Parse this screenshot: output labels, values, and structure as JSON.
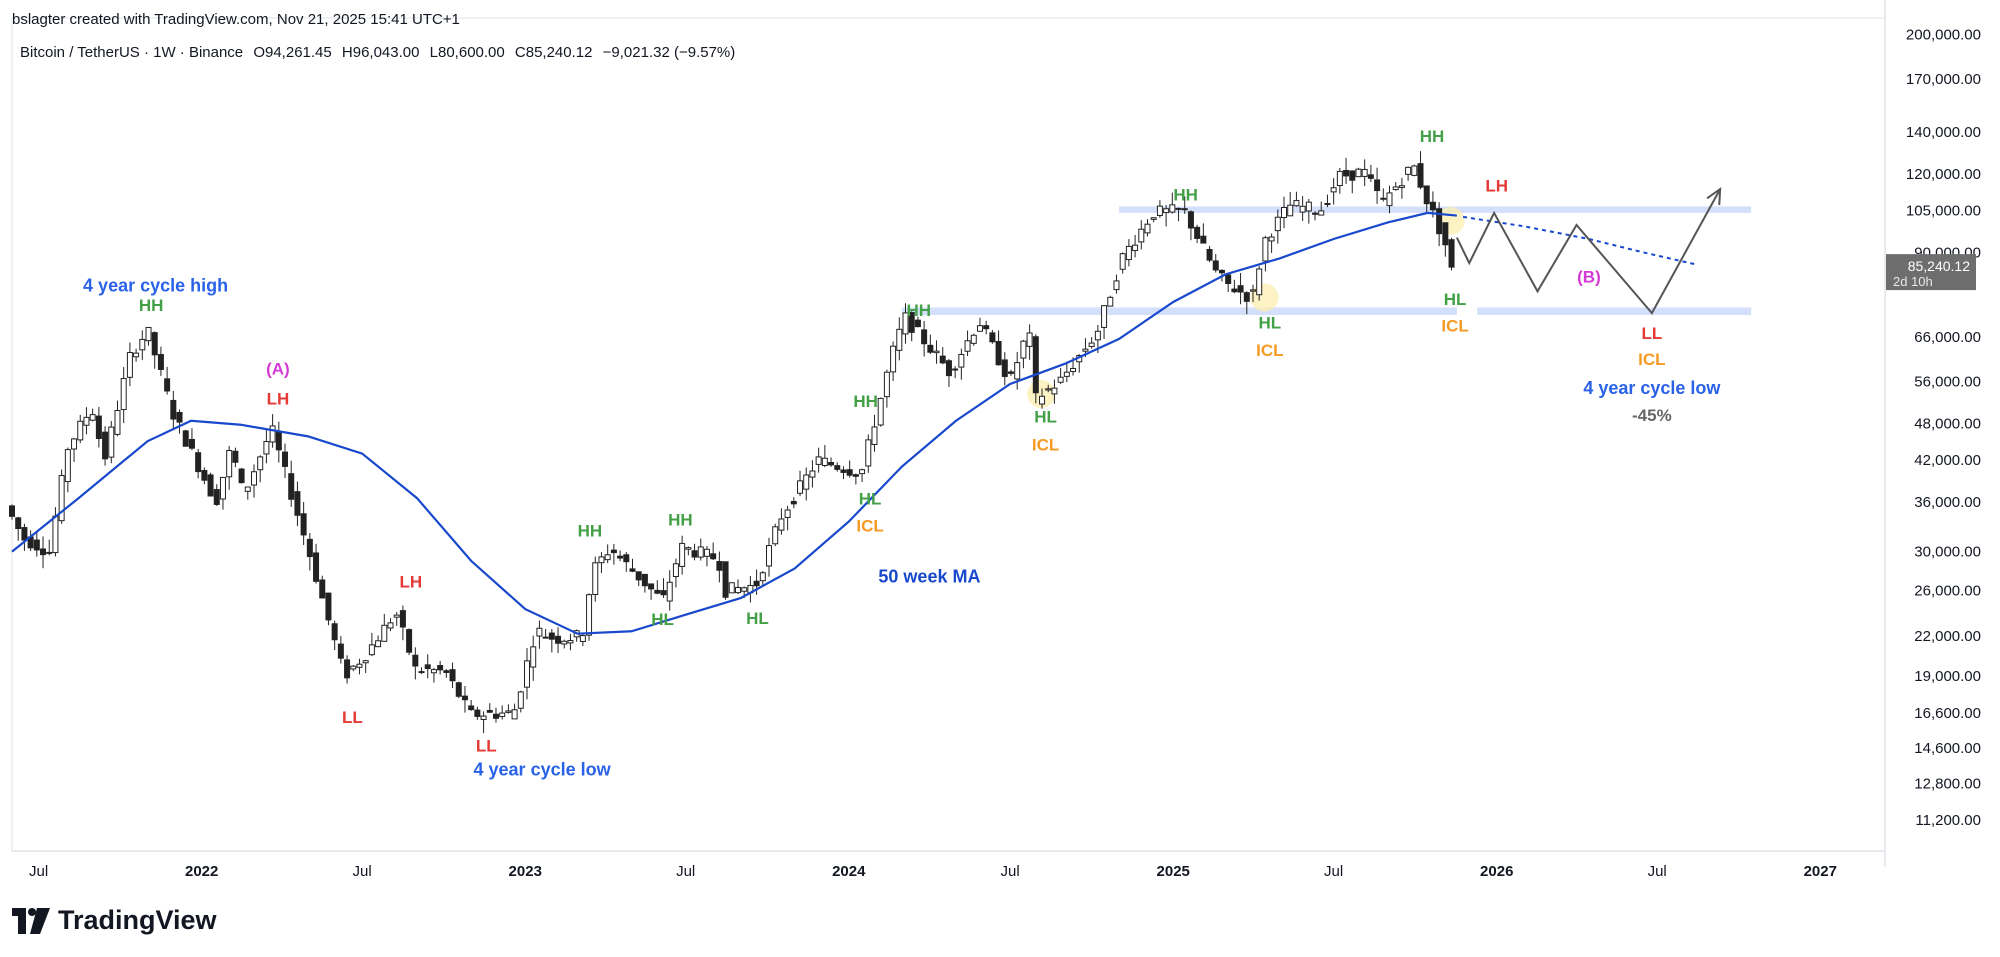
{
  "header": {
    "credit": "bslagter created with TradingView.com, Nov 21, 2025 15:41 UTC+1",
    "symbol": "Bitcoin / TetherUS · 1W · Binance",
    "open": "O94,261.45",
    "high": "H96,043.00",
    "low": "L80,600.00",
    "close": "C85,240.12",
    "change": "−9,021.32 (−9.57%)"
  },
  "footer": {
    "brand": "TradingView"
  },
  "colors": {
    "ma": "#1848cc",
    "green": "#43a047",
    "red": "#e53935",
    "orange": "#f59a23",
    "magenta": "#d33ad3",
    "blue_label": "#2962e8",
    "zone": "#cfdcfb",
    "candle": "#222222"
  },
  "chart_data": {
    "type": "candlestick",
    "title": "Bitcoin / TetherUS · 1W · Binance",
    "y_scale": "log",
    "ylim": [
      10000,
      205000
    ],
    "y_ticks": [
      200000,
      170000,
      140000,
      120000,
      105000,
      90000,
      66000,
      56000,
      48000,
      42000,
      36000,
      30000,
      26000,
      22000,
      19000,
      16600,
      14600,
      12800,
      11200
    ],
    "y_tick_labels": [
      "200,000.00",
      "170,000.00",
      "140,000.00",
      "120,000.00",
      "105,000.00",
      "90,000.00",
      "66,000.00",
      "56,000.00",
      "48,000.00",
      "42,000.00",
      "36,000.00",
      "30,000.00",
      "26,000.00",
      "22,000.00",
      "19,000.00",
      "16,600.00",
      "14,600.00",
      "12,800.00",
      "11,200.00"
    ],
    "x_range": [
      "2021-06-01",
      "2027-03-15"
    ],
    "x_ticks": [
      {
        "date": "2021-07-01",
        "label": "Jul",
        "bold": false
      },
      {
        "date": "2022-01-01",
        "label": "2022",
        "bold": true
      },
      {
        "date": "2022-07-01",
        "label": "Jul",
        "bold": false
      },
      {
        "date": "2023-01-01",
        "label": "2023",
        "bold": true
      },
      {
        "date": "2023-07-01",
        "label": "Jul",
        "bold": false
      },
      {
        "date": "2024-01-01",
        "label": "2024",
        "bold": true
      },
      {
        "date": "2024-07-01",
        "label": "Jul",
        "bold": false
      },
      {
        "date": "2025-01-01",
        "label": "2025",
        "bold": true
      },
      {
        "date": "2025-07-01",
        "label": "Jul",
        "bold": false
      },
      {
        "date": "2026-01-01",
        "label": "2026",
        "bold": true
      },
      {
        "date": "2026-07-01",
        "label": "Jul",
        "bold": false
      },
      {
        "date": "2027-01-01",
        "label": "2027",
        "bold": true
      }
    ],
    "price_keypoints": [
      [
        "2021-06-01",
        35500
      ],
      [
        "2021-06-21",
        31500
      ],
      [
        "2021-07-20",
        30000
      ],
      [
        "2021-08-10",
        44000
      ],
      [
        "2021-09-06",
        51000
      ],
      [
        "2021-09-20",
        42000
      ],
      [
        "2021-10-20",
        62000
      ],
      [
        "2021-11-08",
        67500
      ],
      [
        "2021-12-06",
        50000
      ],
      [
        "2022-01-24",
        36000
      ],
      [
        "2022-02-10",
        44000
      ],
      [
        "2022-02-24",
        37000
      ],
      [
        "2022-03-28",
        47000
      ],
      [
        "2022-05-09",
        30000
      ],
      [
        "2022-06-18",
        19000
      ],
      [
        "2022-07-11",
        20500
      ],
      [
        "2022-08-15",
        24000
      ],
      [
        "2022-09-06",
        19500
      ],
      [
        "2022-10-10",
        19300
      ],
      [
        "2022-11-07",
        16500
      ],
      [
        "2022-12-26",
        16600
      ],
      [
        "2023-01-20",
        22500
      ],
      [
        "2023-02-10",
        21800
      ],
      [
        "2023-03-13",
        22000
      ],
      [
        "2023-03-25",
        28000
      ],
      [
        "2023-04-14",
        30400
      ],
      [
        "2023-06-12",
        25000
      ],
      [
        "2023-07-03",
        30500
      ],
      [
        "2023-08-14",
        29200
      ],
      [
        "2023-08-21",
        26000
      ],
      [
        "2023-09-25",
        26500
      ],
      [
        "2023-10-23",
        34000
      ],
      [
        "2023-12-04",
        42000
      ],
      [
        "2024-01-22",
        40000
      ],
      [
        "2024-02-26",
        62000
      ],
      [
        "2024-03-11",
        71000
      ],
      [
        "2024-05-01",
        58000
      ],
      [
        "2024-06-03",
        70000
      ],
      [
        "2024-07-08",
        56000
      ],
      [
        "2024-07-29",
        68000
      ],
      [
        "2024-08-05",
        52500
      ],
      [
        "2024-09-02",
        56000
      ],
      [
        "2024-10-14",
        67000
      ],
      [
        "2024-11-11",
        88000
      ],
      [
        "2024-12-16",
        104000
      ],
      [
        "2025-01-20",
        105000
      ],
      [
        "2025-02-24",
        84000
      ],
      [
        "2025-03-10",
        80000
      ],
      [
        "2025-04-07",
        76000
      ],
      [
        "2025-04-21",
        94000
      ],
      [
        "2025-05-19",
        107000
      ],
      [
        "2025-06-23",
        105000
      ],
      [
        "2025-07-14",
        119000
      ],
      [
        "2025-08-11",
        121000
      ],
      [
        "2025-09-01",
        108000
      ],
      [
        "2025-10-06",
        124000
      ],
      [
        "2025-10-20",
        110000
      ],
      [
        "2025-11-10",
        94000
      ],
      [
        "2025-11-17",
        85240
      ]
    ],
    "ma_series": {
      "name": "50 week MA",
      "points": [
        [
          "2021-06-01",
          30000
        ],
        [
          "2021-08-15",
          36500
        ],
        [
          "2021-11-01",
          45000
        ],
        [
          "2021-12-20",
          48500
        ],
        [
          "2022-02-14",
          47800
        ],
        [
          "2022-05-01",
          45800
        ],
        [
          "2022-07-01",
          43000
        ],
        [
          "2022-09-01",
          36500
        ],
        [
          "2022-11-01",
          29000
        ],
        [
          "2023-01-01",
          24300
        ],
        [
          "2023-03-01",
          22200
        ],
        [
          "2023-05-01",
          22400
        ],
        [
          "2023-07-01",
          23800
        ],
        [
          "2023-09-01",
          25300
        ],
        [
          "2023-11-01",
          28200
        ],
        [
          "2024-01-01",
          33500
        ],
        [
          "2024-03-01",
          41000
        ],
        [
          "2024-05-01",
          48500
        ],
        [
          "2024-07-01",
          55500
        ],
        [
          "2024-09-01",
          59800
        ],
        [
          "2024-11-01",
          65500
        ],
        [
          "2025-01-01",
          75000
        ],
        [
          "2025-03-01",
          83000
        ],
        [
          "2025-05-01",
          88000
        ],
        [
          "2025-07-01",
          94500
        ],
        [
          "2025-09-01",
          100500
        ],
        [
          "2025-10-15",
          104000
        ],
        [
          "2025-11-17",
          103000
        ]
      ]
    },
    "ma_projection": [
      [
        "2025-11-24",
        102500
      ],
      [
        "2026-02-01",
        99000
      ],
      [
        "2026-04-15",
        94500
      ],
      [
        "2026-06-15",
        90000
      ],
      [
        "2026-08-15",
        86000
      ]
    ],
    "forecast_path": [
      [
        "2025-11-17",
        95000
      ],
      [
        "2025-12-01",
        86500
      ],
      [
        "2025-12-29",
        104000
      ],
      [
        "2026-02-16",
        78000
      ],
      [
        "2026-04-01",
        99500
      ],
      [
        "2026-06-25",
        72000
      ],
      [
        "2026-09-10",
        113500
      ]
    ],
    "current_price_label": {
      "price": 85240,
      "text": "85,240.12",
      "sub": "2d 10h"
    },
    "zones": [
      {
        "y_lo": 104000,
        "y_hi": 106500,
        "x_from": "2024-11-01",
        "x_to": "2026-10-15"
      },
      {
        "y_lo": 71500,
        "y_hi": 73500,
        "x_from": "2024-03-01",
        "x_to": "2025-11-17"
      },
      {
        "y_lo": 71500,
        "y_hi": 73500,
        "x_from": "2025-12-10",
        "x_to": "2026-10-15"
      }
    ],
    "highlights": [
      {
        "date": "2024-08-05",
        "price": 53500
      },
      {
        "date": "2025-04-14",
        "price": 76200
      },
      {
        "date": "2025-11-10",
        "price": 101000
      }
    ],
    "annotations": [
      {
        "text": "4 year cycle high",
        "color": "blue_label",
        "date": "2021-11-10",
        "price": 78000
      },
      {
        "text": "HH",
        "color": "green",
        "date": "2021-11-05",
        "price": 72500
      },
      {
        "text": "(A)",
        "color": "magenta",
        "date": "2022-03-28",
        "price": 57500
      },
      {
        "text": "LH",
        "color": "red",
        "date": "2022-03-28",
        "price": 51500
      },
      {
        "text": "LL",
        "color": "red",
        "date": "2022-06-20",
        "price": 16000
      },
      {
        "text": "LH",
        "color": "red",
        "date": "2022-08-25",
        "price": 26300
      },
      {
        "text": "LL",
        "color": "red",
        "date": "2022-11-18",
        "price": 14400
      },
      {
        "text": "4 year cycle low",
        "color": "blue_label",
        "date": "2023-01-20",
        "price": 13200
      },
      {
        "text": "HH",
        "color": "green",
        "date": "2023-03-15",
        "price": 31700
      },
      {
        "text": "HL",
        "color": "green",
        "date": "2023-06-05",
        "price": 22900
      },
      {
        "text": "HH",
        "color": "green",
        "date": "2023-06-25",
        "price": 33000
      },
      {
        "text": "HL",
        "color": "green",
        "date": "2023-09-20",
        "price": 23000
      },
      {
        "text": "HH",
        "color": "green",
        "date": "2024-01-20",
        "price": 51000
      },
      {
        "text": "HL",
        "color": "green",
        "date": "2024-01-25",
        "price": 35700
      },
      {
        "text": "ICL",
        "color": "orange",
        "date": "2024-01-25",
        "price": 32300
      },
      {
        "text": "HH",
        "color": "green",
        "date": "2024-03-20",
        "price": 71300
      },
      {
        "text": "50 week MA",
        "color": "ma",
        "date": "2024-04-01",
        "price": 26800
      },
      {
        "text": "HL",
        "color": "green",
        "date": "2024-08-10",
        "price": 48200
      },
      {
        "text": "ICL",
        "color": "orange",
        "date": "2024-08-10",
        "price": 43500
      },
      {
        "text": "HH",
        "color": "green",
        "date": "2025-01-15",
        "price": 108800
      },
      {
        "text": "HL",
        "color": "green",
        "date": "2025-04-20",
        "price": 68000
      },
      {
        "text": "ICL",
        "color": "orange",
        "date": "2025-04-20",
        "price": 61500
      },
      {
        "text": "HH",
        "color": "green",
        "date": "2025-10-20",
        "price": 135000
      },
      {
        "text": "HL",
        "color": "green",
        "date": "2025-11-15",
        "price": 74200
      },
      {
        "text": "ICL",
        "color": "orange",
        "date": "2025-11-15",
        "price": 67300
      },
      {
        "text": "LH",
        "color": "red",
        "date": "2026-01-01",
        "price": 112500
      },
      {
        "text": "(B)",
        "color": "magenta",
        "date": "2026-04-15",
        "price": 80500
      },
      {
        "text": "LL",
        "color": "red",
        "date": "2026-06-25",
        "price": 65500
      },
      {
        "text": "ICL",
        "color": "orange",
        "date": "2026-06-25",
        "price": 59500
      },
      {
        "text": "4 year cycle low",
        "color": "blue_label",
        "date": "2026-06-25",
        "price": 53500
      },
      {
        "text": "-45%",
        "color": "gray",
        "date": "2026-06-25",
        "price": 48500
      }
    ]
  }
}
